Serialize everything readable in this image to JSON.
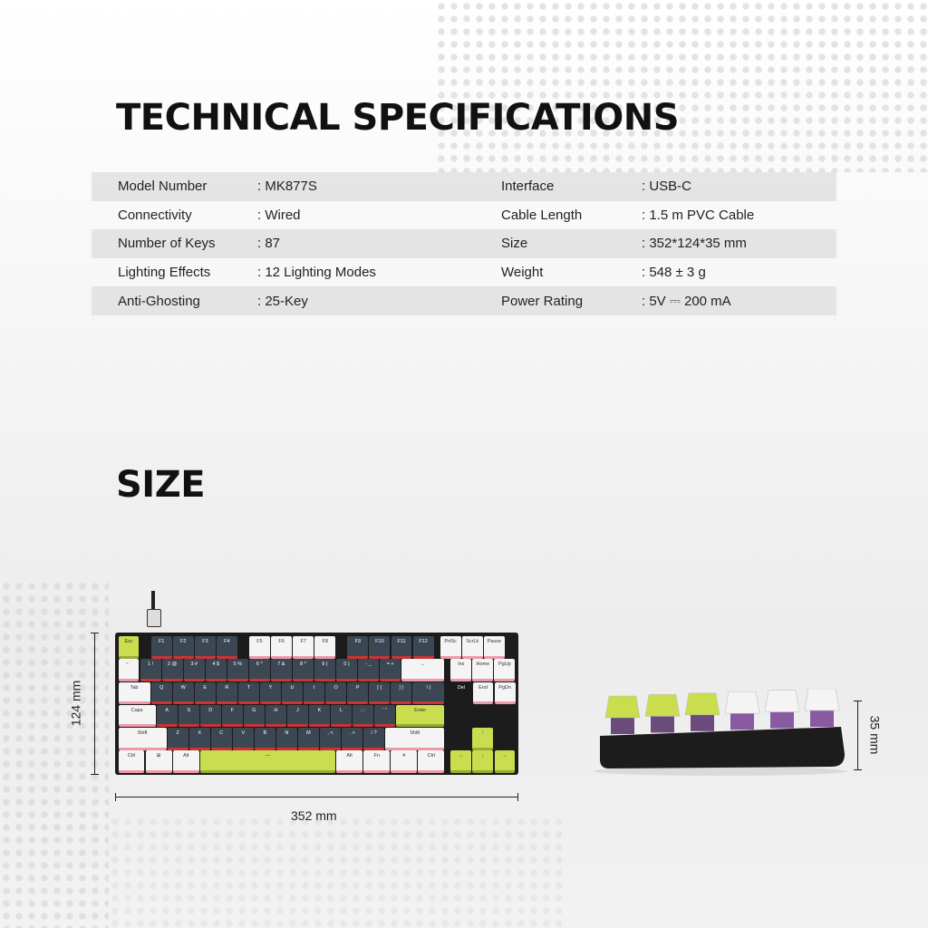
{
  "specs_title": "TECHNICAL SPECIFICATIONS",
  "specs": [
    {
      "label": "Model Number",
      "value": ": MK877S",
      "label2": "Interface",
      "value2": ": USB-C"
    },
    {
      "label": "Connectivity",
      "value": ": Wired",
      "label2": "Cable Length",
      "value2": ": 1.5 m PVC Cable"
    },
    {
      "label": "Number of Keys",
      "value": ": 87",
      "label2": "Size",
      "value2": ": 352*124*35 mm"
    },
    {
      "label": "Lighting Effects",
      "value": ": 12 Lighting Modes",
      "label2": "Weight",
      "value2": ": 548 ± 3 g"
    },
    {
      "label": "Anti-Ghosting",
      "value": ": 25-Key",
      "label2": "Power Rating",
      "value2": ": 5V ⎓ 200 mA"
    }
  ],
  "size_title": "SIZE",
  "dimensions": {
    "width": "352 mm",
    "depth": "124 mm",
    "height": "35 mm"
  },
  "keyboard_rows": [
    [
      "Esc",
      "",
      "F1",
      "F2",
      "F3",
      "F4",
      "",
      "F5",
      "F6",
      "F7",
      "F8",
      "",
      "F9",
      "F10",
      "F11",
      "F12",
      "",
      "PrtSc",
      "ScrLk",
      "Pause"
    ],
    [
      "~ `",
      "1 !",
      "2 @",
      "3 #",
      "4 $",
      "5 %",
      "6 ^",
      "7 &",
      "8 *",
      "9 (",
      "0 )",
      "- _",
      "= +",
      "←",
      "",
      "Ins",
      "Home",
      "PgUp"
    ],
    [
      "Tab",
      "Q",
      "W",
      "E",
      "R",
      "T",
      "Y",
      "U",
      "I",
      "O",
      "P",
      "[ {",
      "] }",
      "\\ |",
      "",
      "Del",
      "End",
      "PgDn"
    ],
    [
      "Caps",
      "A",
      "S",
      "D",
      "F",
      "G",
      "H",
      "J",
      "K",
      "L",
      "; :",
      "' \"",
      "Enter",
      "",
      "",
      ""
    ],
    [
      "Shift",
      "Z",
      "X",
      "C",
      "V",
      "B",
      "N",
      "M",
      ", <",
      ". >",
      "/ ?",
      "Shift",
      "",
      "↑",
      ""
    ],
    [
      "Ctrl",
      "⊞",
      "Alt",
      "—",
      "Alt",
      "Fn",
      "☀",
      "Ctrl",
      "",
      "←",
      "↓",
      "→"
    ]
  ],
  "colors": {
    "dark_key": "#3b4752",
    "white_key": "#f4f4f4",
    "lime_key": "#c9dd4f",
    "case": "#1c1c1c"
  }
}
